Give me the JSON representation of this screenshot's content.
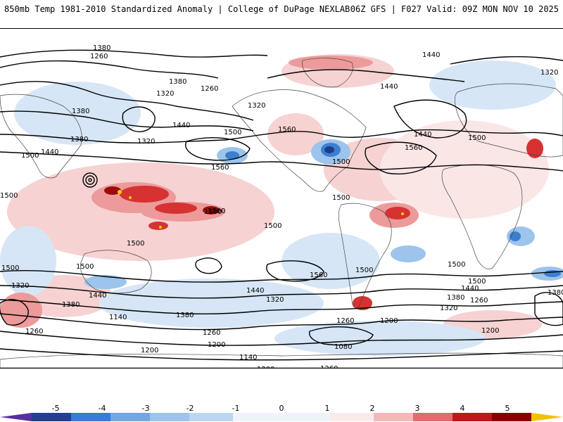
{
  "header": {
    "left": "850mb Temp 1981-2010 Standardized Anomaly | College of DuPage NEXLAB",
    "right": "06Z GFS | F027 Valid: 09Z MON NOV 10 2025"
  },
  "map": {
    "contour_labels": [
      "1380",
      "1260",
      "1440",
      "1320",
      "1380",
      "1260",
      "1320",
      "1380",
      "1500",
      "1440",
      "1560",
      "1500",
      "1440",
      "1500",
      "1320",
      "1380",
      "1560",
      "1500",
      "1500",
      "1560",
      "1500",
      "1500",
      "1500",
      "1440",
      "1320",
      "1380",
      "1140",
      "1260",
      "1260",
      "1200",
      "1080",
      "1200",
      "1140",
      "1200",
      "1260",
      "1320",
      "1260",
      "1380",
      "1440",
      "1500",
      "1320",
      "1260",
      "1200",
      "1500",
      "1560",
      "1500",
      "1440",
      "1380",
      "1260",
      "1500",
      "1320",
      "1380",
      "1440",
      "1500",
      "1500",
      "1500",
      "1440",
      "1320",
      "1200"
    ],
    "colors": {
      "warm_light": "#f6d2d2",
      "warm_mid": "#ec9a9a",
      "warm_strong": "#d63232",
      "warm_deep": "#9e0a0a",
      "warm_extreme": "#ffcc00",
      "cold_light": "#d6e6f6",
      "cold_mid": "#9cc4ec",
      "cold_strong": "#3d7fcf",
      "cold_deep": "#1e3c8c",
      "coast": "#444444",
      "contour": "#000000"
    }
  },
  "colorbar": {
    "ticks": [
      "-5",
      "-4",
      "-3",
      "-2",
      "-1",
      "0",
      "1",
      "2",
      "3",
      "4",
      "5"
    ],
    "colors": [
      "#5a2ea0",
      "#253f8f",
      "#3a7cd0",
      "#74a6e0",
      "#bcd5f0",
      "#eef4fb",
      "#fbeaea",
      "#f3b9b9",
      "#e06c6c",
      "#c01818",
      "#8a0000",
      "#f4c000"
    ]
  }
}
